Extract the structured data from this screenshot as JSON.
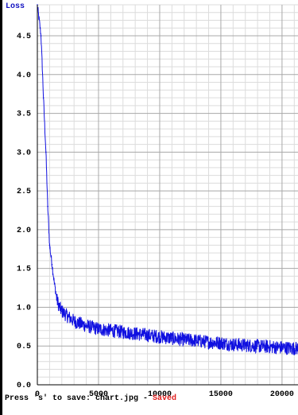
{
  "chart_data": {
    "type": "line",
    "title": "",
    "ylabel": "Loss",
    "xlabel": "",
    "xlim": [
      0,
      21500
    ],
    "ylim": [
      0.0,
      4.9
    ],
    "x_ticks": [
      0,
      5000,
      10000,
      15000,
      20000
    ],
    "x_tick_labels": [
      "0",
      "5000",
      "10000",
      "15000",
      "20000"
    ],
    "y_ticks": [
      0.5,
      1.0,
      1.5,
      2.0,
      2.5,
      3.0,
      3.5,
      4.0,
      4.5
    ],
    "y_tick_labels": [
      "0.5",
      "1.0",
      "1.5",
      "2.0",
      "2.5",
      "3.0",
      "3.5",
      "4.0",
      "4.5"
    ],
    "origin_label": "0.0",
    "grid": true,
    "series": [
      {
        "color": "#1010e0",
        "x": [
          0,
          300,
          500,
          700,
          850,
          1000,
          1200,
          1400,
          1600,
          1800,
          2000,
          2500,
          3000,
          4000,
          5000,
          6000,
          7000,
          8000,
          9000,
          10000,
          11000,
          12000,
          13000,
          14000,
          15000,
          16000,
          17000,
          18000,
          19000,
          20000,
          21000,
          21500
        ],
        "y": [
          4.9,
          4.5,
          3.7,
          3.0,
          2.3,
          1.8,
          1.55,
          1.3,
          1.1,
          1.0,
          0.95,
          0.88,
          0.82,
          0.76,
          0.72,
          0.7,
          0.68,
          0.66,
          0.64,
          0.62,
          0.6,
          0.58,
          0.57,
          0.55,
          0.54,
          0.52,
          0.51,
          0.5,
          0.49,
          0.48,
          0.47,
          0.47
        ]
      }
    ]
  },
  "status": {
    "prefix": "Press 's' to save: chart.jpg",
    "separator": " - ",
    "saved": "Saved"
  }
}
